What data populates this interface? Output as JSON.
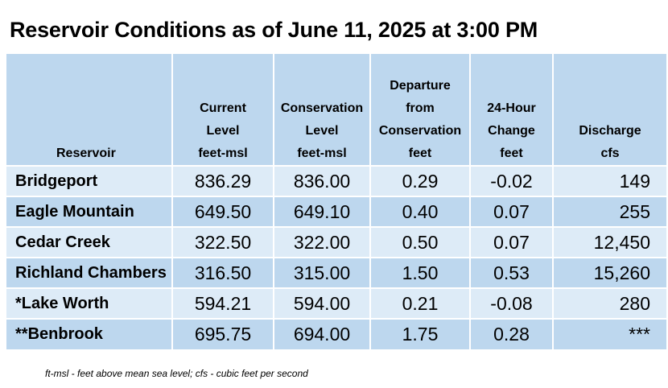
{
  "title": "Reservoir Conditions as of June 11, 2025 at 3:00 PM",
  "headers": {
    "reservoir": [
      "Reservoir"
    ],
    "current": [
      "Current",
      "Level",
      "feet-msl"
    ],
    "conservation": [
      "Conservation",
      "Level",
      "feet-msl"
    ],
    "departure": [
      "Departure",
      "from",
      "Conservation",
      "feet"
    ],
    "change": [
      "24-Hour",
      "Change",
      "feet"
    ],
    "discharge": [
      "Discharge",
      "cfs"
    ]
  },
  "rows": [
    {
      "name": "Bridgeport",
      "current": "836.29",
      "conservation": "836.00",
      "departure": "0.29",
      "change": "-0.02",
      "discharge": "149"
    },
    {
      "name": "Eagle Mountain",
      "current": "649.50",
      "conservation": "649.10",
      "departure": "0.40",
      "change": "0.07",
      "discharge": "255"
    },
    {
      "name": "Cedar Creek",
      "current": "322.50",
      "conservation": "322.00",
      "departure": "0.50",
      "change": "0.07",
      "discharge": "12,450"
    },
    {
      "name": "Richland Chambers",
      "current": "316.50",
      "conservation": "315.00",
      "departure": "1.50",
      "change": "0.53",
      "discharge": "15,260"
    },
    {
      "name": "*Lake Worth",
      "current": "594.21",
      "conservation": "594.00",
      "departure": "0.21",
      "change": "-0.08",
      "discharge": "280"
    },
    {
      "name": "**Benbrook",
      "current": "695.75",
      "conservation": "694.00",
      "departure": "1.75",
      "change": "0.28",
      "discharge": "***"
    }
  ],
  "footnote": "ft-msl - feet above mean sea level; cfs - cubic feet per second"
}
